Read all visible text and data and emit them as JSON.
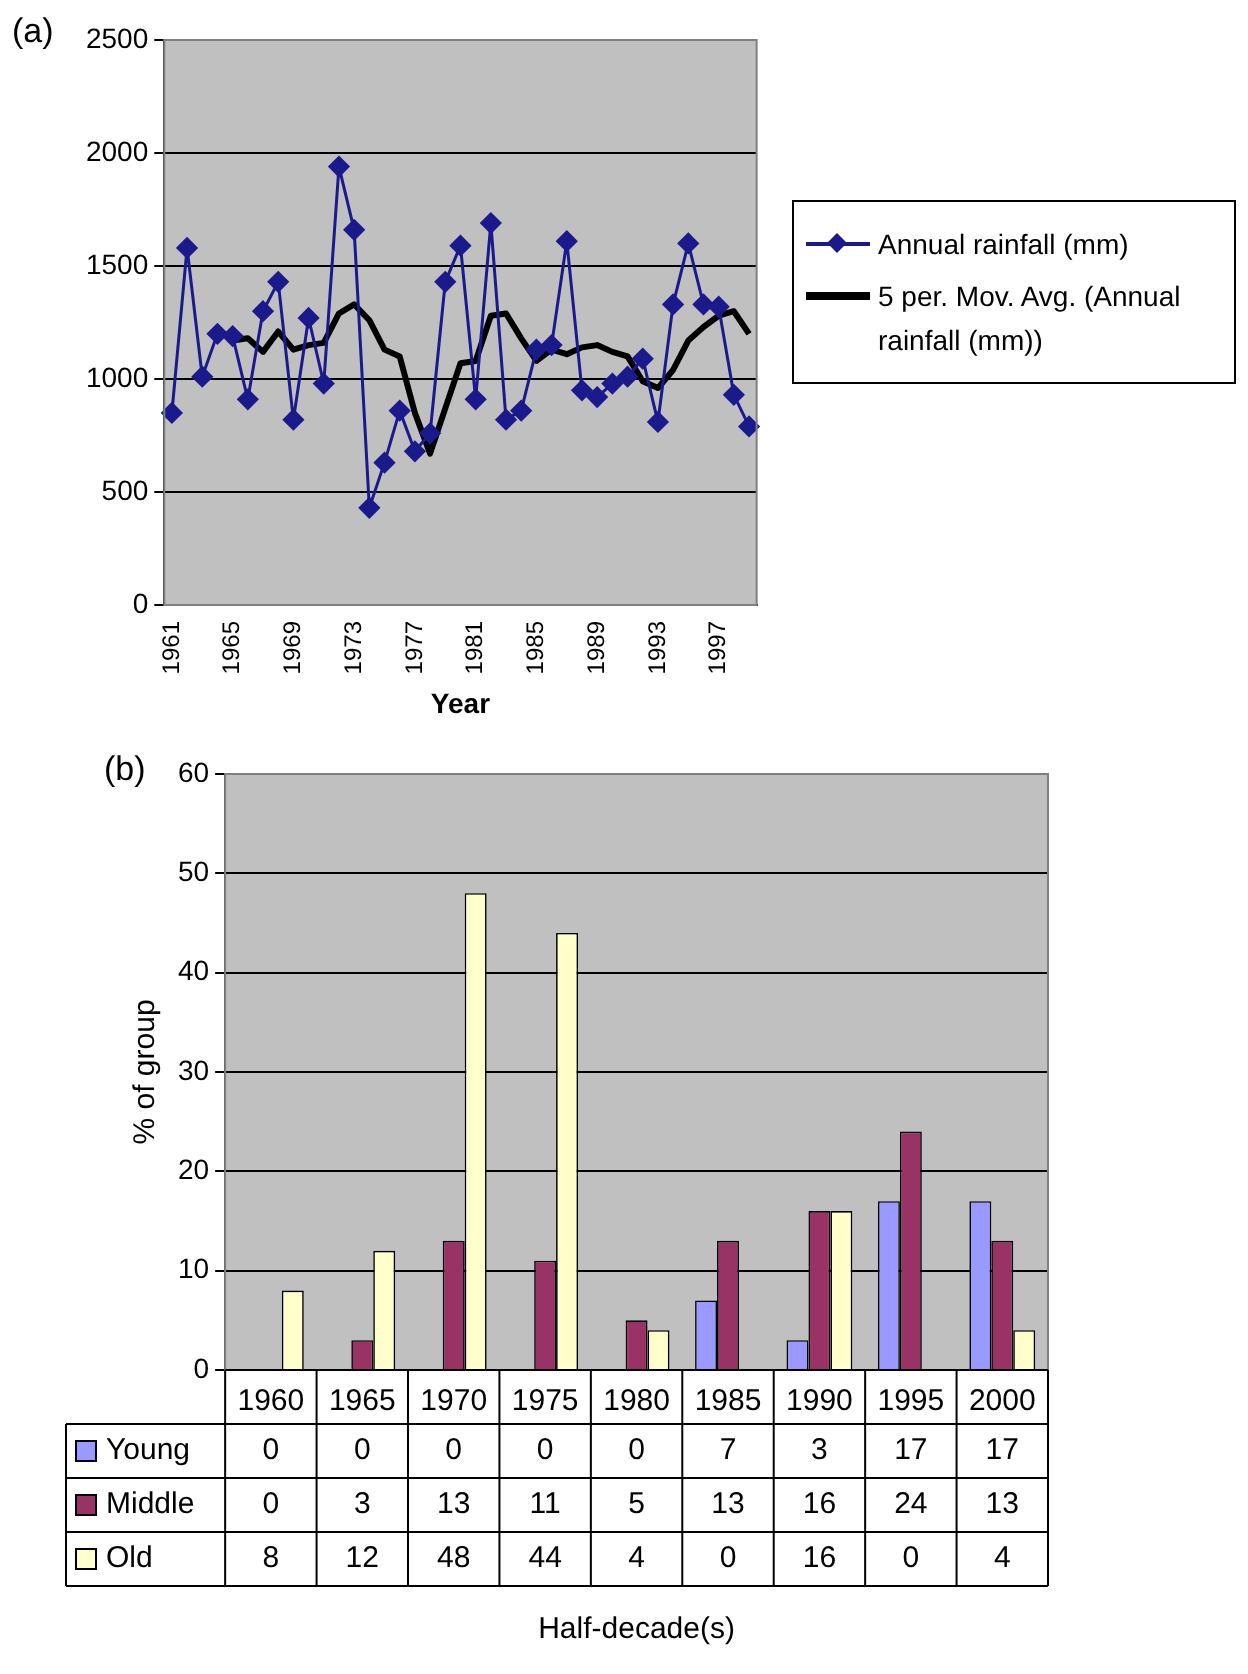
{
  "chart_data": [
    {
      "type": "line",
      "xlabel": "Year",
      "annotations": [
        "(a)"
      ],
      "categories": [
        "1961",
        null,
        null,
        null,
        "1965",
        null,
        null,
        null,
        "1969",
        null,
        null,
        null,
        "1973",
        null,
        null,
        null,
        "1977",
        null,
        null,
        null,
        "1981",
        null,
        null,
        null,
        "1985",
        null,
        null,
        null,
        "1989",
        null,
        null,
        null,
        "1993",
        null,
        null,
        null,
        "1997",
        null,
        null
      ],
      "series": [
        {
          "name": "Annual rainfall (mm)",
          "color": "#1a1a8c",
          "marker": "diamond",
          "values": [
            850,
            1580,
            1010,
            1200,
            1190,
            910,
            1300,
            1430,
            820,
            1270,
            980,
            1940,
            1660,
            430,
            630,
            860,
            680,
            760,
            1430,
            1590,
            910,
            1690,
            820,
            860,
            1130,
            1150,
            1610,
            950,
            920,
            980,
            1010,
            1090,
            810,
            1330,
            1600,
            1330,
            1320,
            930,
            790
          ]
        },
        {
          "name": "5 per. Mov. Avg. (Annual rainfall (mm))",
          "color": "#000000",
          "marker": "none",
          "values": [
            null,
            null,
            null,
            null,
            1170,
            1180,
            1120,
            1210,
            1130,
            1150,
            1160,
            1290,
            1330,
            1260,
            1130,
            1100,
            850,
            670,
            870,
            1070,
            1080,
            1280,
            1290,
            1180,
            1080,
            1130,
            1110,
            1140,
            1150,
            1120,
            1100,
            990,
            960,
            1040,
            1170,
            1230,
            1280,
            1300,
            1200
          ]
        }
      ],
      "ylim": [
        0,
        2500
      ],
      "yticks": [
        0,
        500,
        1000,
        1500,
        2000,
        2500
      ],
      "grid": "y",
      "legend": "right",
      "line_style": "solid"
    },
    {
      "type": "bar",
      "xlabel": "Half-decade(s)",
      "ylabel": "% of group",
      "annotations": [
        "(b)"
      ],
      "categories": [
        "1960",
        "1965",
        "1970",
        "1975",
        "1980",
        "1985",
        "1990",
        "1995",
        "2000"
      ],
      "series": [
        {
          "name": "Young",
          "color": "#9999ff",
          "values": [
            0,
            0,
            0,
            0,
            0,
            7,
            3,
            17,
            17
          ]
        },
        {
          "name": "Middle",
          "color": "#993366",
          "values": [
            0,
            3,
            13,
            11,
            5,
            13,
            16,
            24,
            13
          ]
        },
        {
          "name": "Old",
          "color": "#ffffcc",
          "values": [
            8,
            12,
            48,
            44,
            4,
            0,
            16,
            0,
            4
          ]
        }
      ],
      "ylim": [
        0,
        60
      ],
      "yticks": [
        0,
        10,
        20,
        30,
        40,
        50,
        60
      ],
      "grid": "y",
      "legend": "bottom",
      "data_labels": true
    }
  ]
}
